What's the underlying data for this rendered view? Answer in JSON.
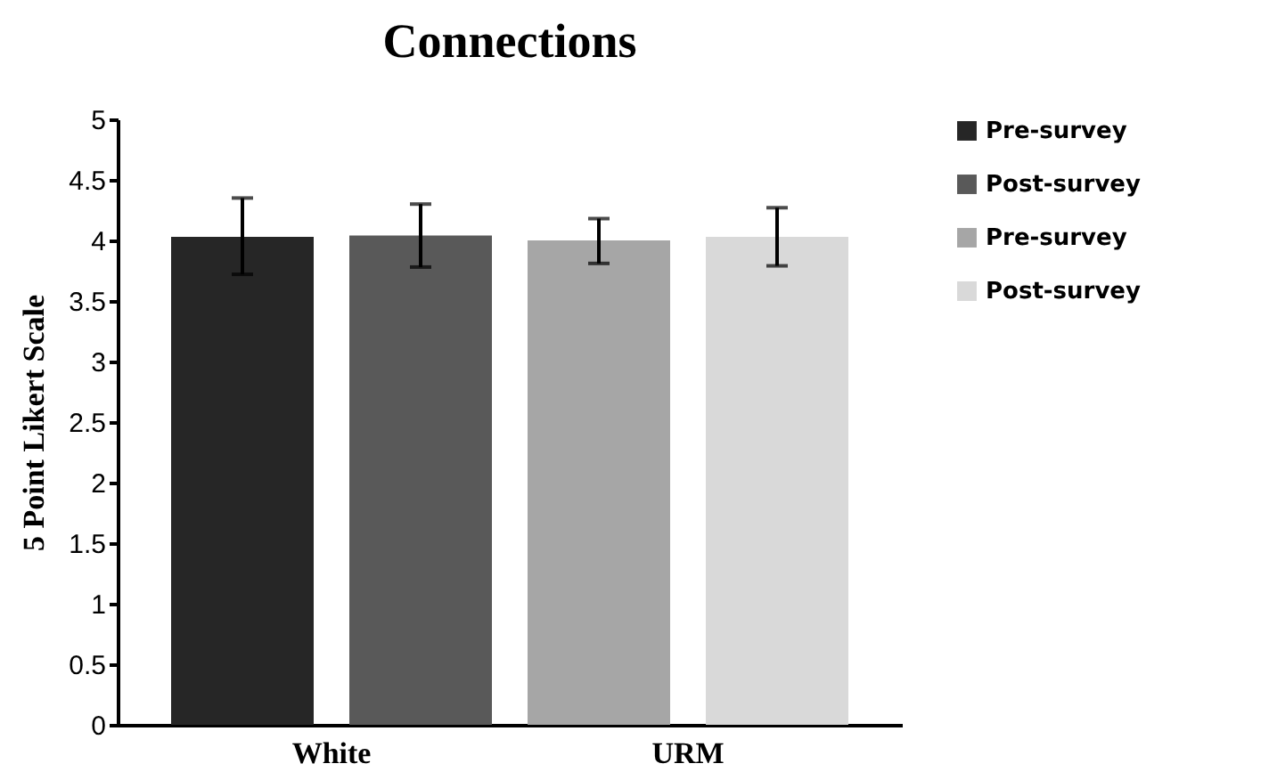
{
  "chart_data": {
    "type": "bar",
    "title": "Connections",
    "ylabel": "5 Point Likert Scale",
    "categories": [
      "White",
      "URM"
    ],
    "series": [
      {
        "name": "Pre-survey",
        "color": "#262626",
        "values": [
          4.03,
          null
        ],
        "errors": [
          [
            3.72,
            4.35
          ],
          null
        ]
      },
      {
        "name": "Post-survey",
        "color": "#595959",
        "values": [
          4.04,
          null
        ],
        "errors": [
          [
            3.78,
            4.3
          ],
          null
        ]
      },
      {
        "name": "Pre-survey",
        "color": "#a6a6a6",
        "values": [
          null,
          4.0
        ],
        "errors": [
          null,
          [
            3.81,
            4.18
          ]
        ]
      },
      {
        "name": "Post-survey",
        "color": "#d9d9d9",
        "values": [
          null,
          4.03
        ],
        "errors": [
          null,
          [
            3.79,
            4.27
          ]
        ]
      }
    ],
    "ylim": [
      0,
      5
    ],
    "yticks": [
      0,
      0.5,
      1,
      1.5,
      2,
      2.5,
      3,
      3.5,
      4,
      4.5,
      5
    ],
    "grid": false,
    "legend": "right"
  }
}
